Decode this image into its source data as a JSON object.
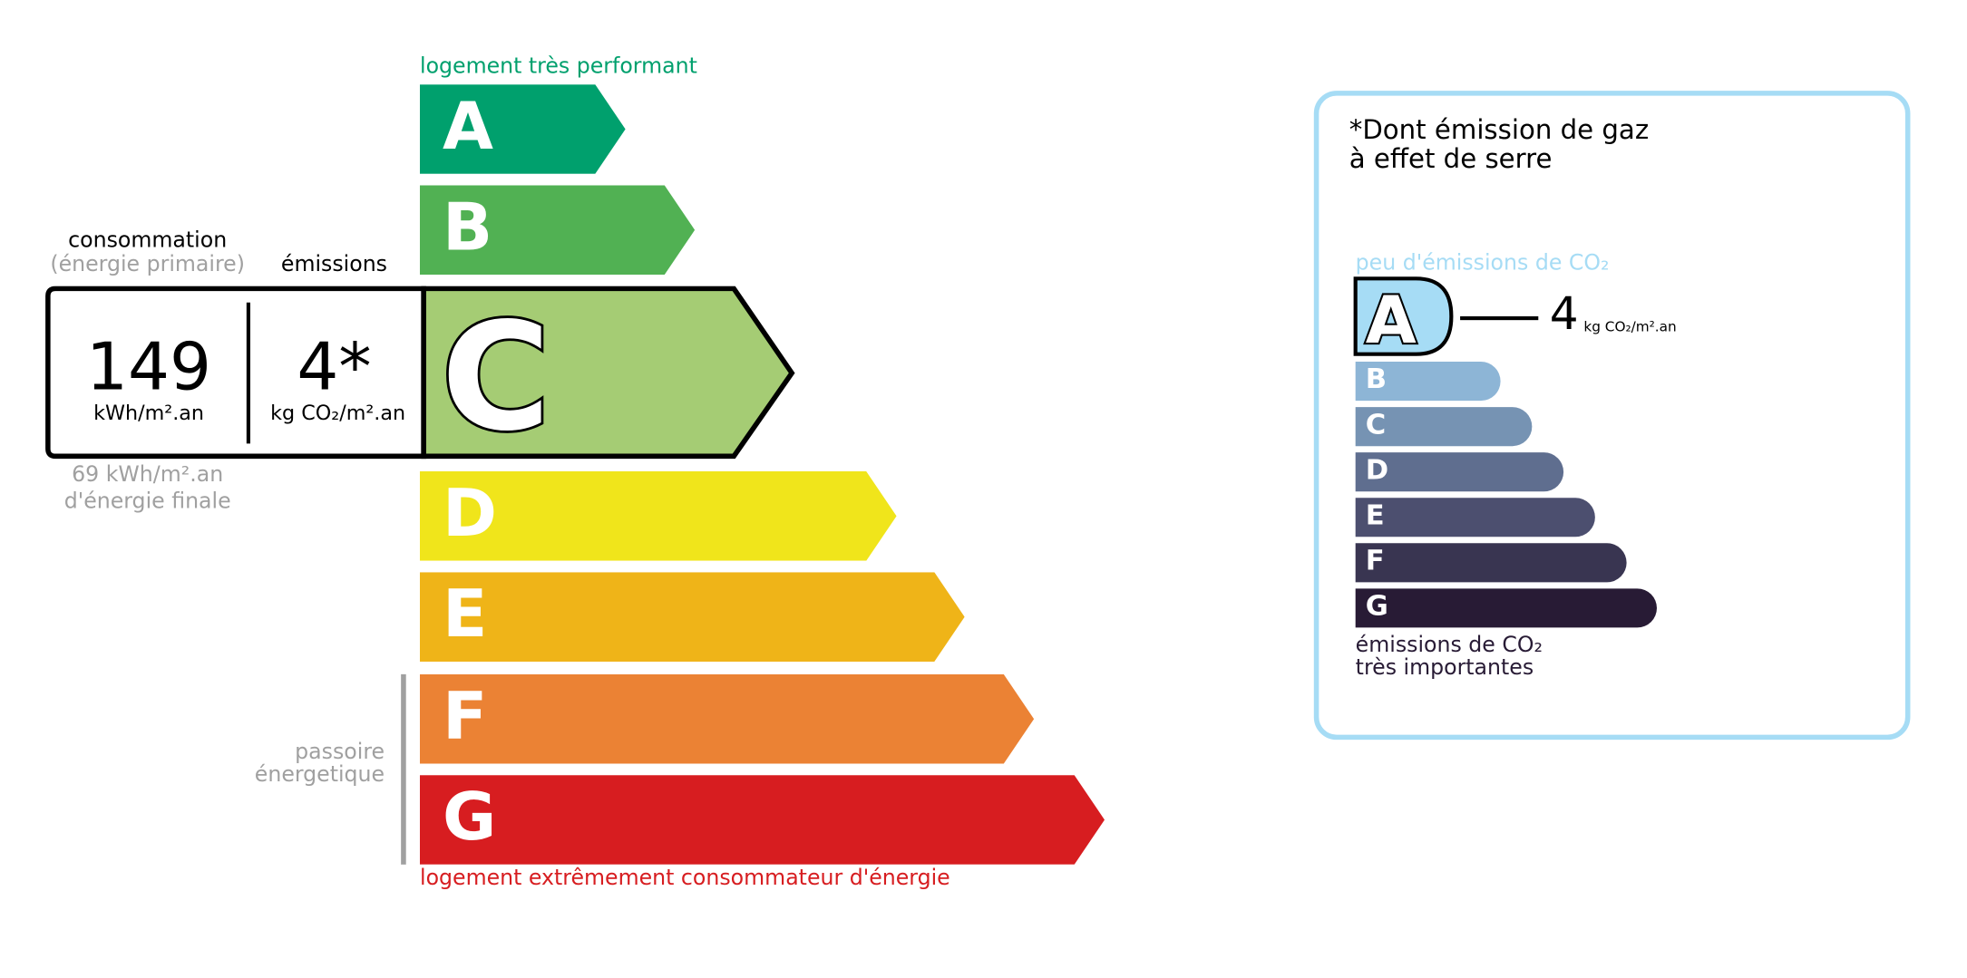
{
  "energy": {
    "top_label": "logement très performant",
    "bottom_label": "logement extrêmement consommateur d'énergie",
    "classes": [
      {
        "letter": "A",
        "color": "#00a06d"
      },
      {
        "letter": "B",
        "color": "#51b153"
      },
      {
        "letter": "C",
        "color": "#a5cc74"
      },
      {
        "letter": "D",
        "color": "#f0e51b"
      },
      {
        "letter": "E",
        "color": "#efb418"
      },
      {
        "letter": "F",
        "color": "#eb8234"
      },
      {
        "letter": "G",
        "color": "#d71d20"
      }
    ],
    "current_class": "C",
    "consumption_label": "consommation",
    "consumption_sub": "(énergie primaire)",
    "emissions_label": "émissions",
    "consumption_value": "149",
    "consumption_unit": "kWh/m².an",
    "emissions_value": "4*",
    "emissions_unit": "kg CO₂/m².an",
    "final_energy_value": "69 kWh/m².an",
    "final_energy_label": "d'énergie finale",
    "passoire_line1": "passoire",
    "passoire_line2": "énergetique"
  },
  "ges": {
    "title_line1": "*Dont émission de gaz",
    "title_line2": "à effet de serre",
    "top_label": "peu d'émissions de CO₂",
    "bottom_line1": "émissions de CO₂",
    "bottom_line2": "très importantes",
    "current_class": "A",
    "value": "4",
    "unit": "kg CO₂/m².an",
    "border_color": "#a6dcf5",
    "classes": [
      {
        "letter": "A",
        "color": "#a6dcf5"
      },
      {
        "letter": "B",
        "color": "#8db5d6"
      },
      {
        "letter": "C",
        "color": "#7693b3"
      },
      {
        "letter": "D",
        "color": "#5f6e8f"
      },
      {
        "letter": "E",
        "color": "#4c4f6f"
      },
      {
        "letter": "F",
        "color": "#393551"
      },
      {
        "letter": "G",
        "color": "#281b35"
      }
    ]
  }
}
